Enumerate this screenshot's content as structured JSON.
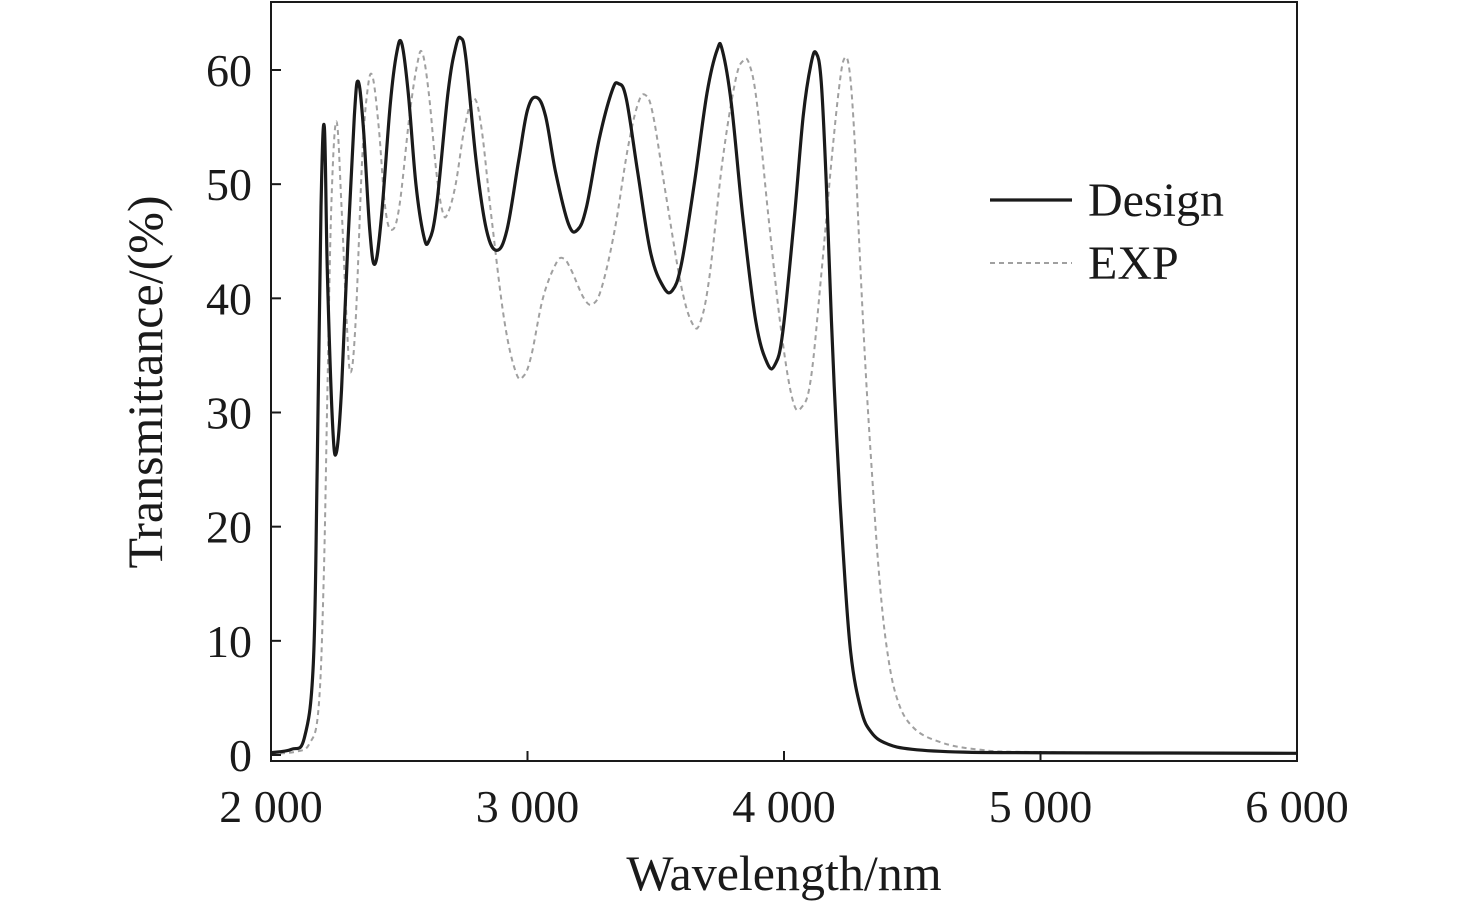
{
  "chart_data": {
    "type": "line",
    "xlabel": "Wavelength/nm",
    "ylabel": "Transmittance/(%)",
    "xlim": [
      2000,
      6000
    ],
    "ylim": [
      0,
      65
    ],
    "x_ticks": [
      2000,
      3000,
      4000,
      5000,
      6000
    ],
    "x_tick_labels": [
      "2 000",
      "3 000",
      "4 000",
      "5 000",
      "6 000"
    ],
    "y_ticks": [
      0,
      10,
      20,
      30,
      40,
      50,
      60
    ],
    "y_tick_labels": [
      "0",
      "10",
      "20",
      "30",
      "40",
      "50",
      "60"
    ],
    "grid": false,
    "legend_position": "top-right",
    "series": [
      {
        "name": "Design",
        "style": "solid",
        "color": "#1a1a1a",
        "points": [
          [
            2000,
            0.2
          ],
          [
            2080,
            0.5
          ],
          [
            2130,
            1.5
          ],
          [
            2165,
            8
          ],
          [
            2180,
            25
          ],
          [
            2195,
            48
          ],
          [
            2208,
            55
          ],
          [
            2220,
            42
          ],
          [
            2240,
            29
          ],
          [
            2255,
            26.5
          ],
          [
            2275,
            32
          ],
          [
            2300,
            45
          ],
          [
            2325,
            56
          ],
          [
            2340,
            59
          ],
          [
            2360,
            55
          ],
          [
            2385,
            46
          ],
          [
            2405,
            43
          ],
          [
            2430,
            47
          ],
          [
            2465,
            57
          ],
          [
            2490,
            61.5
          ],
          [
            2510,
            62.3
          ],
          [
            2535,
            58
          ],
          [
            2565,
            50
          ],
          [
            2595,
            45.5
          ],
          [
            2615,
            45
          ],
          [
            2645,
            48
          ],
          [
            2690,
            58
          ],
          [
            2720,
            62
          ],
          [
            2740,
            62.8
          ],
          [
            2760,
            61
          ],
          [
            2800,
            52
          ],
          [
            2840,
            46
          ],
          [
            2880,
            44.2
          ],
          [
            2920,
            46
          ],
          [
            2965,
            52
          ],
          [
            3000,
            56.5
          ],
          [
            3035,
            57.6
          ],
          [
            3070,
            56
          ],
          [
            3110,
            51
          ],
          [
            3160,
            46.5
          ],
          [
            3195,
            46
          ],
          [
            3230,
            48
          ],
          [
            3280,
            54
          ],
          [
            3330,
            58.2
          ],
          [
            3355,
            58.8
          ],
          [
            3385,
            57.5
          ],
          [
            3430,
            51
          ],
          [
            3480,
            44
          ],
          [
            3530,
            41
          ],
          [
            3565,
            40.7
          ],
          [
            3600,
            43
          ],
          [
            3650,
            50
          ],
          [
            3700,
            58
          ],
          [
            3740,
            61.8
          ],
          [
            3760,
            61.7
          ],
          [
            3795,
            57
          ],
          [
            3840,
            47
          ],
          [
            3890,
            38
          ],
          [
            3935,
            34.3
          ],
          [
            3965,
            34.2
          ],
          [
            3995,
            37
          ],
          [
            4040,
            47
          ],
          [
            4075,
            56
          ],
          [
            4105,
            60.5
          ],
          [
            4125,
            61.5
          ],
          [
            4145,
            59
          ],
          [
            4165,
            50
          ],
          [
            4185,
            38
          ],
          [
            4205,
            28
          ],
          [
            4230,
            18
          ],
          [
            4260,
            9
          ],
          [
            4300,
            4
          ],
          [
            4340,
            2
          ],
          [
            4400,
            1
          ],
          [
            4500,
            0.5
          ],
          [
            4700,
            0.25
          ],
          [
            5000,
            0.2
          ],
          [
            6000,
            0.15
          ]
        ]
      },
      {
        "name": "EXP",
        "style": "dashed",
        "color": "#a0a0a0",
        "points": [
          [
            2000,
            0.1
          ],
          [
            2100,
            0.3
          ],
          [
            2150,
            1
          ],
          [
            2185,
            4
          ],
          [
            2205,
            15
          ],
          [
            2220,
            32
          ],
          [
            2235,
            48
          ],
          [
            2255,
            55.5
          ],
          [
            2275,
            48
          ],
          [
            2295,
            38
          ],
          [
            2310,
            33.5
          ],
          [
            2330,
            38
          ],
          [
            2355,
            52
          ],
          [
            2375,
            58
          ],
          [
            2395,
            59.5
          ],
          [
            2420,
            55
          ],
          [
            2445,
            48
          ],
          [
            2470,
            46
          ],
          [
            2500,
            48
          ],
          [
            2540,
            56
          ],
          [
            2570,
            60.5
          ],
          [
            2590,
            61.5
          ],
          [
            2615,
            58
          ],
          [
            2645,
            51
          ],
          [
            2670,
            47.5
          ],
          [
            2690,
            47.5
          ],
          [
            2720,
            50
          ],
          [
            2755,
            55
          ],
          [
            2790,
            57.5
          ],
          [
            2820,
            55
          ],
          [
            2860,
            47
          ],
          [
            2910,
            38
          ],
          [
            2955,
            33.5
          ],
          [
            2985,
            33.2
          ],
          [
            3015,
            35
          ],
          [
            3060,
            40
          ],
          [
            3110,
            43
          ],
          [
            3140,
            43.5
          ],
          [
            3170,
            42.5
          ],
          [
            3220,
            40
          ],
          [
            3255,
            39.5
          ],
          [
            3290,
            41
          ],
          [
            3340,
            46
          ],
          [
            3390,
            53
          ],
          [
            3430,
            57
          ],
          [
            3460,
            57.8
          ],
          [
            3490,
            56
          ],
          [
            3540,
            49
          ],
          [
            3600,
            41
          ],
          [
            3645,
            37.7
          ],
          [
            3675,
            38
          ],
          [
            3710,
            42
          ],
          [
            3760,
            52
          ],
          [
            3810,
            59
          ],
          [
            3840,
            60.8
          ],
          [
            3865,
            60.5
          ],
          [
            3895,
            57
          ],
          [
            3940,
            47
          ],
          [
            3990,
            37
          ],
          [
            4035,
            31
          ],
          [
            4070,
            30.5
          ],
          [
            4105,
            33
          ],
          [
            4145,
            42
          ],
          [
            4185,
            52
          ],
          [
            4215,
            58.5
          ],
          [
            4235,
            61
          ],
          [
            4255,
            60
          ],
          [
            4275,
            54
          ],
          [
            4295,
            44
          ],
          [
            4320,
            33
          ],
          [
            4345,
            24
          ],
          [
            4370,
            16
          ],
          [
            4400,
            9.5
          ],
          [
            4440,
            5
          ],
          [
            4500,
            2.5
          ],
          [
            4600,
            1.2
          ],
          [
            4750,
            0.5
          ],
          [
            5000,
            0.25
          ],
          [
            6000,
            0.15
          ]
        ]
      }
    ]
  }
}
